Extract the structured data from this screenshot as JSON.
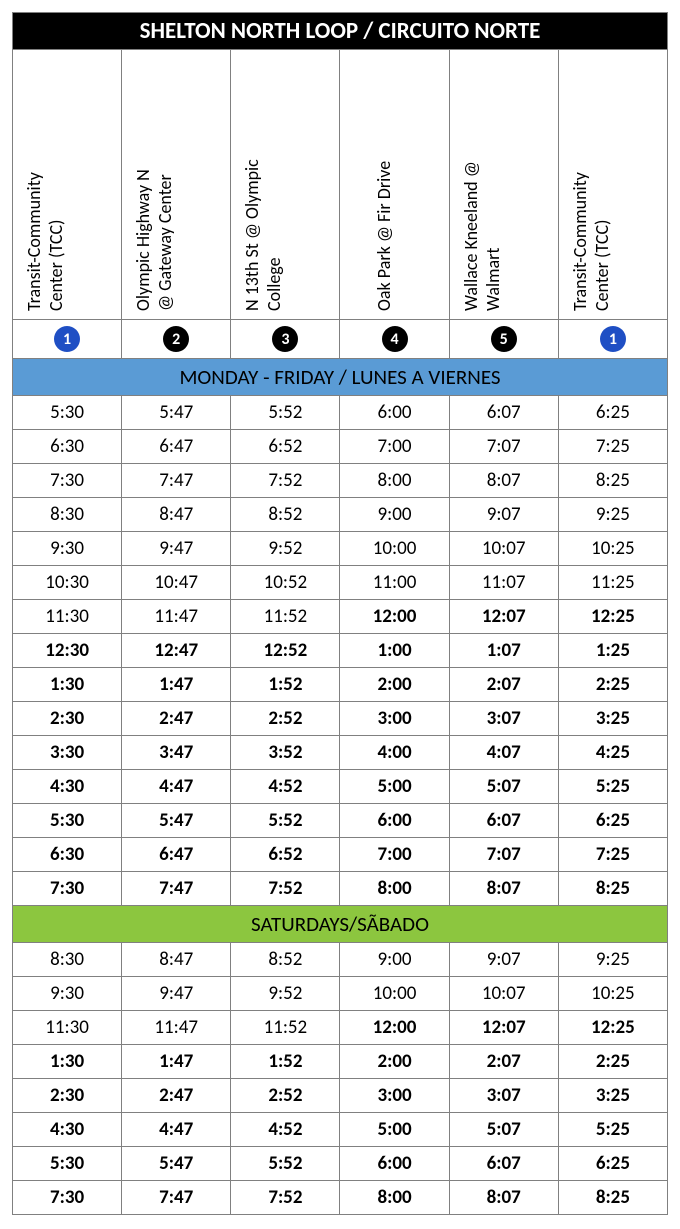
{
  "title": "SHELTON NORTH LOOP / CIRCUITO NORTE",
  "title_bg": "#000000",
  "title_color": "#ffffff",
  "border_color": "#808080",
  "stops": [
    {
      "name_line1": "Transit-Community",
      "name_line2": "Center (TCC)",
      "num": "1",
      "num_color": "#1f4fc4"
    },
    {
      "name_line1": "Olympic Highway N",
      "name_line2": "@ Gateway Center",
      "num": "2",
      "num_color": "#000000"
    },
    {
      "name_line1": "N 13th St @ Olympic",
      "name_line2": "College",
      "num": "3",
      "num_color": "#000000"
    },
    {
      "name_line1": "Oak Park @ Fir Drive",
      "name_line2": "",
      "num": "4",
      "num_color": "#000000"
    },
    {
      "name_line1": "Wallace Kneeland @",
      "name_line2": "Walmart",
      "num": "5",
      "num_color": "#000000"
    },
    {
      "name_line1": "Transit-Community",
      "name_line2": "Center (TCC)",
      "num": "1",
      "num_color": "#1f4fc4"
    }
  ],
  "sections": [
    {
      "header": "MONDAY - FRIDAY / LUNES A VIERNES",
      "bg": "#5a9bd5",
      "rows": [
        {
          "cells": [
            "5:30",
            "5:47",
            "5:52",
            "6:00",
            "6:07",
            "6:25"
          ],
          "bold": [
            false,
            false,
            false,
            false,
            false,
            false
          ]
        },
        {
          "cells": [
            "6:30",
            "6:47",
            "6:52",
            "7:00",
            "7:07",
            "7:25"
          ],
          "bold": [
            false,
            false,
            false,
            false,
            false,
            false
          ]
        },
        {
          "cells": [
            "7:30",
            "7:47",
            "7:52",
            "8:00",
            "8:07",
            "8:25"
          ],
          "bold": [
            false,
            false,
            false,
            false,
            false,
            false
          ]
        },
        {
          "cells": [
            "8:30",
            "8:47",
            "8:52",
            "9:00",
            "9:07",
            "9:25"
          ],
          "bold": [
            false,
            false,
            false,
            false,
            false,
            false
          ]
        },
        {
          "cells": [
            "9:30",
            "9:47",
            "9:52",
            "10:00",
            "10:07",
            "10:25"
          ],
          "bold": [
            false,
            false,
            false,
            false,
            false,
            false
          ]
        },
        {
          "cells": [
            "10:30",
            "10:47",
            "10:52",
            "11:00",
            "11:07",
            "11:25"
          ],
          "bold": [
            false,
            false,
            false,
            false,
            false,
            false
          ]
        },
        {
          "cells": [
            "11:30",
            "11:47",
            "11:52",
            "12:00",
            "12:07",
            "12:25"
          ],
          "bold": [
            false,
            false,
            false,
            true,
            true,
            true
          ]
        },
        {
          "cells": [
            "12:30",
            "12:47",
            "12:52",
            "1:00",
            "1:07",
            "1:25"
          ],
          "bold": [
            true,
            true,
            true,
            true,
            true,
            true
          ]
        },
        {
          "cells": [
            "1:30",
            "1:47",
            "1:52",
            "2:00",
            "2:07",
            "2:25"
          ],
          "bold": [
            true,
            true,
            true,
            true,
            true,
            true
          ]
        },
        {
          "cells": [
            "2:30",
            "2:47",
            "2:52",
            "3:00",
            "3:07",
            "3:25"
          ],
          "bold": [
            true,
            true,
            true,
            true,
            true,
            true
          ]
        },
        {
          "cells": [
            "3:30",
            "3:47",
            "3:52",
            "4:00",
            "4:07",
            "4:25"
          ],
          "bold": [
            true,
            true,
            true,
            true,
            true,
            true
          ]
        },
        {
          "cells": [
            "4:30",
            "4:47",
            "4:52",
            "5:00",
            "5:07",
            "5:25"
          ],
          "bold": [
            true,
            true,
            true,
            true,
            true,
            true
          ]
        },
        {
          "cells": [
            "5:30",
            "5:47",
            "5:52",
            "6:00",
            "6:07",
            "6:25"
          ],
          "bold": [
            true,
            true,
            true,
            true,
            true,
            true
          ]
        },
        {
          "cells": [
            "6:30",
            "6:47",
            "6:52",
            "7:00",
            "7:07",
            "7:25"
          ],
          "bold": [
            true,
            true,
            true,
            true,
            true,
            true
          ]
        },
        {
          "cells": [
            "7:30",
            "7:47",
            "7:52",
            "8:00",
            "8:07",
            "8:25"
          ],
          "bold": [
            true,
            true,
            true,
            true,
            true,
            true
          ]
        }
      ]
    },
    {
      "header": "SATURDAYS/SÃBADO",
      "bg": "#8cc63f",
      "rows": [
        {
          "cells": [
            "8:30",
            "8:47",
            "8:52",
            "9:00",
            "9:07",
            "9:25"
          ],
          "bold": [
            false,
            false,
            false,
            false,
            false,
            false
          ]
        },
        {
          "cells": [
            "9:30",
            "9:47",
            "9:52",
            "10:00",
            "10:07",
            "10:25"
          ],
          "bold": [
            false,
            false,
            false,
            false,
            false,
            false
          ]
        },
        {
          "cells": [
            "11:30",
            "11:47",
            "11:52",
            "12:00",
            "12:07",
            "12:25"
          ],
          "bold": [
            false,
            false,
            false,
            true,
            true,
            true
          ]
        },
        {
          "cells": [
            "1:30",
            "1:47",
            "1:52",
            "2:00",
            "2:07",
            "2:25"
          ],
          "bold": [
            true,
            true,
            true,
            true,
            true,
            true
          ]
        },
        {
          "cells": [
            "2:30",
            "2:47",
            "2:52",
            "3:00",
            "3:07",
            "3:25"
          ],
          "bold": [
            true,
            true,
            true,
            true,
            true,
            true
          ]
        },
        {
          "cells": [
            "4:30",
            "4:47",
            "4:52",
            "5:00",
            "5:07",
            "5:25"
          ],
          "bold": [
            true,
            true,
            true,
            true,
            true,
            true
          ]
        },
        {
          "cells": [
            "5:30",
            "5:47",
            "5:52",
            "6:00",
            "6:07",
            "6:25"
          ],
          "bold": [
            true,
            true,
            true,
            true,
            true,
            true
          ]
        },
        {
          "cells": [
            "7:30",
            "7:47",
            "7:52",
            "8:00",
            "8:07",
            "8:25"
          ],
          "bold": [
            true,
            true,
            true,
            true,
            true,
            true
          ]
        }
      ]
    }
  ]
}
